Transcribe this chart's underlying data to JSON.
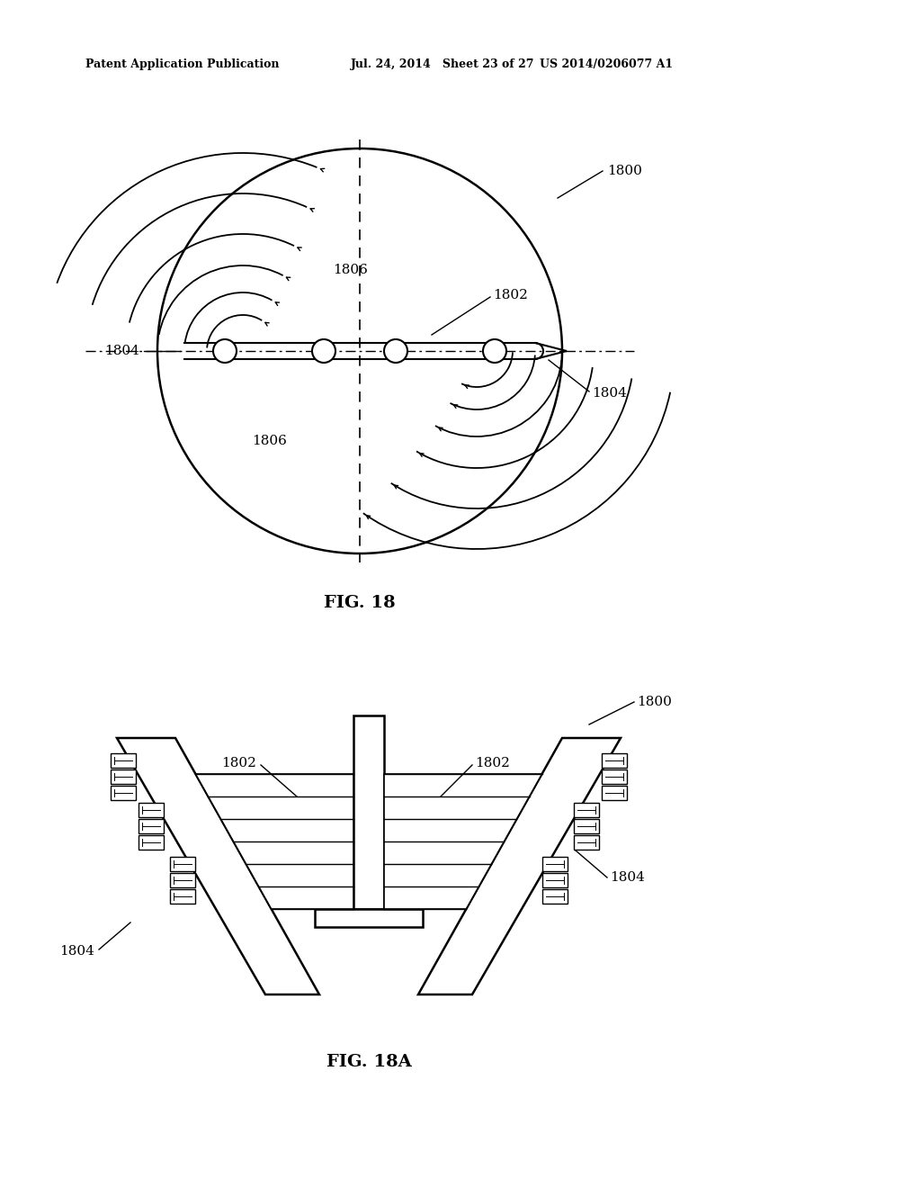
{
  "bg_color": "#ffffff",
  "header_left": "Patent Application Publication",
  "header_mid": "Jul. 24, 2014   Sheet 23 of 27",
  "header_right": "US 2014/0206077 A1",
  "fig18_title": "FIG. 18",
  "fig18a_title": "FIG. 18A"
}
